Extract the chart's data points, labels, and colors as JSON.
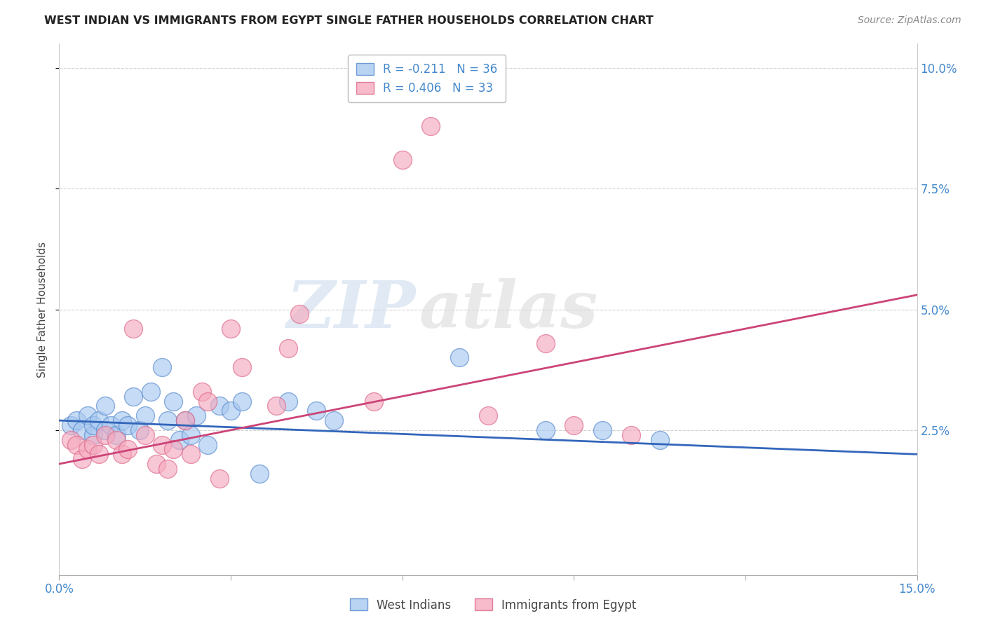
{
  "title": "WEST INDIAN VS IMMIGRANTS FROM EGYPT SINGLE FATHER HOUSEHOLDS CORRELATION CHART",
  "source": "Source: ZipAtlas.com",
  "ylabel": "Single Father Households",
  "xlim": [
    0.0,
    0.15
  ],
  "ylim": [
    -0.005,
    0.105
  ],
  "plot_ylim": [
    -0.005,
    0.105
  ],
  "legend_blue_R": -0.211,
  "legend_blue_N": 36,
  "legend_pink_R": 0.406,
  "legend_pink_N": 33,
  "legend_blue_label": "West Indians",
  "legend_pink_label": "Immigrants from Egypt",
  "blue_color": "#A8C8F0",
  "pink_color": "#F5AABF",
  "blue_edge_color": "#5588CC",
  "pink_edge_color": "#DD6688",
  "blue_line_color": "#3366BB",
  "pink_line_color": "#CC4477",
  "blue_scatter_x": [
    0.002,
    0.003,
    0.004,
    0.005,
    0.006,
    0.006,
    0.007,
    0.008,
    0.008,
    0.009,
    0.01,
    0.011,
    0.012,
    0.013,
    0.014,
    0.015,
    0.016,
    0.018,
    0.019,
    0.02,
    0.021,
    0.022,
    0.023,
    0.024,
    0.026,
    0.028,
    0.03,
    0.032,
    0.035,
    0.04,
    0.045,
    0.048,
    0.07,
    0.085,
    0.095,
    0.105
  ],
  "blue_scatter_y": [
    0.026,
    0.027,
    0.025,
    0.028,
    0.024,
    0.026,
    0.027,
    0.025,
    0.03,
    0.026,
    0.024,
    0.027,
    0.026,
    0.032,
    0.025,
    0.028,
    0.033,
    0.038,
    0.027,
    0.031,
    0.023,
    0.027,
    0.024,
    0.028,
    0.022,
    0.03,
    0.029,
    0.031,
    0.016,
    0.031,
    0.029,
    0.027,
    0.04,
    0.025,
    0.025,
    0.023
  ],
  "pink_scatter_x": [
    0.002,
    0.003,
    0.004,
    0.005,
    0.006,
    0.007,
    0.008,
    0.01,
    0.011,
    0.012,
    0.013,
    0.015,
    0.017,
    0.018,
    0.019,
    0.02,
    0.022,
    0.023,
    0.025,
    0.026,
    0.028,
    0.03,
    0.032,
    0.038,
    0.04,
    0.042,
    0.055,
    0.06,
    0.065,
    0.075,
    0.085,
    0.09,
    0.1
  ],
  "pink_scatter_y": [
    0.023,
    0.022,
    0.019,
    0.021,
    0.022,
    0.02,
    0.024,
    0.023,
    0.02,
    0.021,
    0.046,
    0.024,
    0.018,
    0.022,
    0.017,
    0.021,
    0.027,
    0.02,
    0.033,
    0.031,
    0.015,
    0.046,
    0.038,
    0.03,
    0.042,
    0.049,
    0.031,
    0.081,
    0.088,
    0.028,
    0.043,
    0.026,
    0.024
  ],
  "blue_line_x0": 0.0,
  "blue_line_y0": 0.027,
  "blue_line_x1": 0.15,
  "blue_line_y1": 0.02,
  "pink_line_x0": 0.0,
  "pink_line_y0": 0.018,
  "pink_line_x1": 0.15,
  "pink_line_y1": 0.053,
  "watermark_zip": "ZIP",
  "watermark_atlas": "atlas",
  "background_color": "#FFFFFF",
  "grid_color": "#CCCCCC",
  "right_tick_color": "#4488CC",
  "x_ticks": [
    0.0,
    0.03,
    0.06,
    0.09,
    0.12,
    0.15
  ],
  "y_ticks": [
    0.025,
    0.05,
    0.075,
    0.1
  ],
  "y_tick_labels": [
    "2.5%",
    "5.0%",
    "7.5%",
    "10.0%"
  ]
}
